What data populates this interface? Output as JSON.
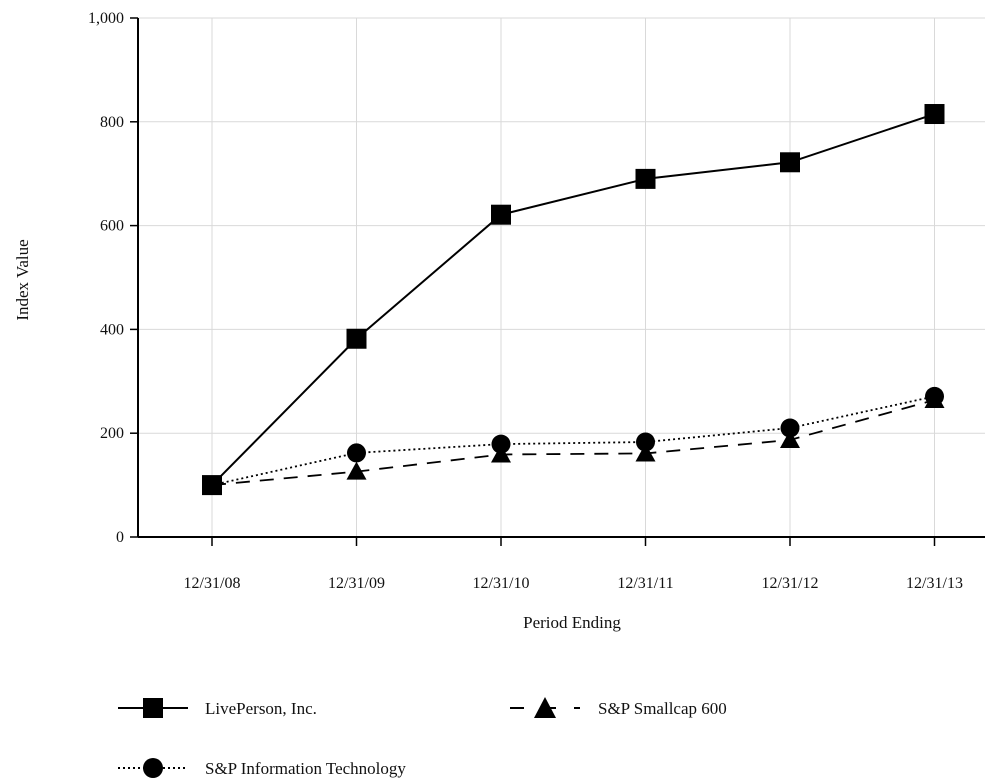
{
  "chart_data": {
    "type": "line",
    "title": "",
    "xlabel": "Period Ending",
    "ylabel": "Index Value",
    "categories": [
      "12/31/08",
      "12/31/09",
      "12/31/10",
      "12/31/11",
      "12/31/12",
      "12/31/13"
    ],
    "ylim": [
      0,
      1000
    ],
    "yticks": [
      "0",
      "200",
      "400",
      "600",
      "800",
      "1,000"
    ],
    "ytick_values": [
      0,
      200,
      400,
      600,
      800,
      1000
    ],
    "grid": true,
    "legend_position": "bottom",
    "series": [
      {
        "name": "LivePerson, Inc.",
        "values": [
          100,
          382,
          621,
          690,
          722,
          815
        ],
        "marker": "square",
        "line_style": "solid",
        "color": "#000000"
      },
      {
        "name": "S&P Smallcap 600",
        "values": [
          100,
          126,
          159,
          161,
          187,
          264
        ],
        "marker": "triangle",
        "line_style": "dashed",
        "color": "#000000"
      },
      {
        "name": "S&P Information Technology",
        "values": [
          100,
          162,
          179,
          183,
          210,
          271
        ],
        "marker": "circle",
        "line_style": "dotted",
        "color": "#000000"
      }
    ]
  }
}
